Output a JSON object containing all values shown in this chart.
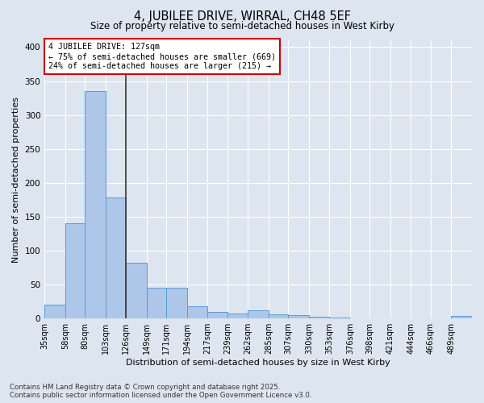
{
  "title": "4, JUBILEE DRIVE, WIRRAL, CH48 5EF",
  "subtitle": "Size of property relative to semi-detached houses in West Kirby",
  "xlabel": "Distribution of semi-detached houses by size in West Kirby",
  "ylabel": "Number of semi-detached properties",
  "footer_line1": "Contains HM Land Registry data © Crown copyright and database right 2025.",
  "footer_line2": "Contains public sector information licensed under the Open Government Licence v3.0.",
  "annotation_label": "4 JUBILEE DRIVE: 127sqm",
  "annotation_line2": "← 75% of semi-detached houses are smaller (669)",
  "annotation_line3": "24% of semi-detached houses are larger (215) →",
  "bin_labels": [
    "35sqm",
    "58sqm",
    "80sqm",
    "103sqm",
    "126sqm",
    "149sqm",
    "171sqm",
    "194sqm",
    "217sqm",
    "239sqm",
    "262sqm",
    "285sqm",
    "307sqm",
    "330sqm",
    "353sqm",
    "376sqm",
    "398sqm",
    "421sqm",
    "444sqm",
    "466sqm",
    "489sqm"
  ],
  "bin_edges": [
    35,
    58,
    80,
    103,
    126,
    149,
    171,
    194,
    217,
    239,
    262,
    285,
    307,
    330,
    353,
    376,
    398,
    421,
    444,
    466,
    489
  ],
  "bar_heights": [
    20,
    140,
    335,
    178,
    82,
    45,
    45,
    18,
    10,
    7,
    12,
    6,
    5,
    3,
    1,
    0,
    0,
    0,
    0,
    0,
    4
  ],
  "bar_color": "#aec6e8",
  "bar_edge_color": "#5b9bd5",
  "vline_color": "#333333",
  "vline_x": 126,
  "annotation_box_color": "#ffffff",
  "annotation_box_edge": "#cc0000",
  "background_color": "#dde5f0",
  "plot_background_color": "#dde5f0",
  "grid_color": "#ffffff",
  "ylim": [
    0,
    410
  ],
  "yticks": [
    0,
    50,
    100,
    150,
    200,
    250,
    300,
    350,
    400
  ]
}
